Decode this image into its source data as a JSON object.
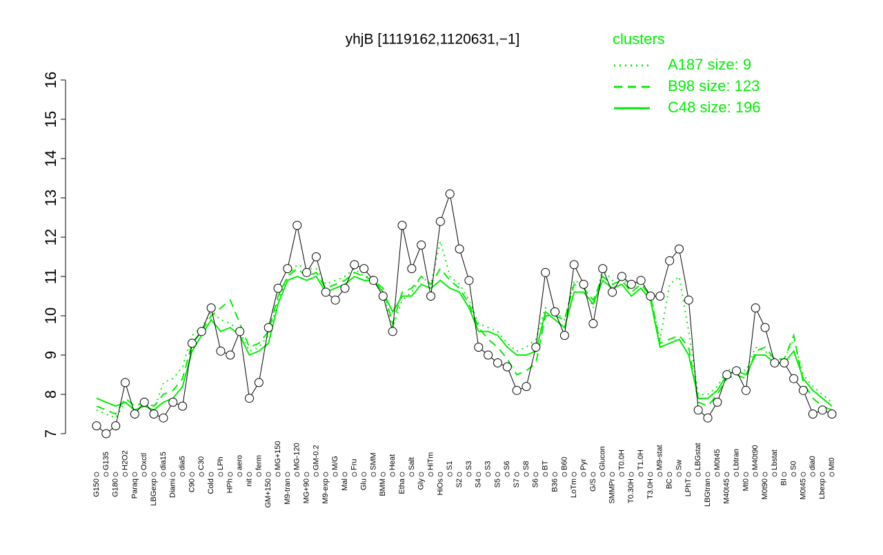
{
  "chart_data": {
    "type": "line",
    "title": "yhjB [1119162,1120631,−1]",
    "legend_title": "clusters",
    "legend_position": "top-right",
    "color": "#000000",
    "categories": [
      "G150",
      "G135",
      "G180",
      "H2O2",
      "Paraq",
      "Oxctl",
      "LBGexp",
      "dia15",
      "Diami",
      "dia5",
      "C90",
      "C30",
      "Cold",
      "LPh",
      "HPh",
      "aero",
      "nit",
      "ferm",
      "GM+150",
      "MG+150",
      "M9-tran",
      "MG-120",
      "MG+90",
      "GM-0.2",
      "M9-exp",
      "M/G",
      "Mal",
      "Fru",
      "Glu",
      "SMM",
      "BMM",
      "Heat",
      "Etha",
      "Salt",
      "Gly",
      "HiTm",
      "HiOs",
      "S1",
      "S2",
      "S3",
      "S4",
      "S3",
      "S5",
      "S6",
      "S7",
      "S8",
      "S6",
      "BT",
      "B36",
      "B60",
      "LoTm",
      "Pyr",
      "G/S",
      "Glucon",
      "SMMPr",
      "T0.0H",
      "T0.30H",
      "T1.0H",
      "T3.0H",
      "M9-stat",
      "BC",
      "Sw",
      "LPhT",
      "LBGstat",
      "LBGtran",
      "M0t45",
      "M40t45",
      "Lbtran",
      "Mt0",
      "M40t90",
      "M0t90",
      "Lbstat",
      "BI",
      "S0",
      "M0t45",
      "dia0",
      "Lbexp",
      "Mt0"
    ],
    "values": [
      7.2,
      7.0,
      7.2,
      8.3,
      7.5,
      7.8,
      7.5,
      7.4,
      7.8,
      7.7,
      9.3,
      9.6,
      10.2,
      9.1,
      9.0,
      9.6,
      7.9,
      8.3,
      9.7,
      10.7,
      11.2,
      12.3,
      11.1,
      11.5,
      10.6,
      10.4,
      10.7,
      11.3,
      11.2,
      10.9,
      10.5,
      9.6,
      12.3,
      11.2,
      11.8,
      10.5,
      12.4,
      13.1,
      11.7,
      10.9,
      9.2,
      9.0,
      8.8,
      8.7,
      8.1,
      8.2,
      9.2,
      11.1,
      10.1,
      9.5,
      11.3,
      10.8,
      9.8,
      11.2,
      10.6,
      11.0,
      10.8,
      10.9,
      10.5,
      10.5,
      11.4,
      11.7,
      10.4,
      7.6,
      7.4,
      7.8,
      8.5,
      8.6,
      8.1,
      10.2,
      9.7,
      8.8,
      8.8,
      8.4,
      8.1,
      7.5,
      7.6,
      7.5
    ],
    "series": [
      {
        "name": "A187 size: 9",
        "color": "#00ee00",
        "style": "dotted",
        "values": [
          7.6,
          7.5,
          7.4,
          7.8,
          7.6,
          7.7,
          7.6,
          8.3,
          8.4,
          8.7,
          9.5,
          9.7,
          10.1,
          9.9,
          9.8,
          9.6,
          9.1,
          9.2,
          9.5,
          10.4,
          11.0,
          11.3,
          11.2,
          11.2,
          10.8,
          10.9,
          11.0,
          11.2,
          11.0,
          11.0,
          10.6,
          9.7,
          10.4,
          10.6,
          11.0,
          10.8,
          11.9,
          11.0,
          10.8,
          10.4,
          9.8,
          9.7,
          9.6,
          9.3,
          9.1,
          9.2,
          9.4,
          10.2,
          10.1,
          9.9,
          10.9,
          10.8,
          10.2,
          11.2,
          10.9,
          11.0,
          10.7,
          10.9,
          10.5,
          9.4,
          10.8,
          11.0,
          9.6,
          8.0,
          8.0,
          8.2,
          8.6,
          8.7,
          8.6,
          9.2,
          9.1,
          8.9,
          8.9,
          9.4,
          8.5,
          8.2,
          8.0,
          7.8
        ]
      },
      {
        "name": "B98 size: 123",
        "color": "#00ee00",
        "style": "dashed",
        "values": [
          7.7,
          7.6,
          7.5,
          7.9,
          7.7,
          7.8,
          7.7,
          8.0,
          8.1,
          8.4,
          9.3,
          9.6,
          10.0,
          10.2,
          10.4,
          9.8,
          9.2,
          9.3,
          9.6,
          10.5,
          11.0,
          11.2,
          11.0,
          11.1,
          10.7,
          10.8,
          10.9,
          11.1,
          11.0,
          10.9,
          10.7,
          9.8,
          10.6,
          10.7,
          11.0,
          10.8,
          11.2,
          10.9,
          10.7,
          10.3,
          9.7,
          9.4,
          9.2,
          8.9,
          8.5,
          8.6,
          8.8,
          10.0,
          10.0,
          9.9,
          10.8,
          10.7,
          10.4,
          11.0,
          10.8,
          10.9,
          10.6,
          10.8,
          10.5,
          9.3,
          9.4,
          9.5,
          9.2,
          7.8,
          7.7,
          8.0,
          8.4,
          8.5,
          8.4,
          9.1,
          9.2,
          8.9,
          8.9,
          9.5,
          8.3,
          7.9,
          7.7,
          7.6
        ]
      },
      {
        "name": "C48 size: 196",
        "color": "#00ee00",
        "style": "solid",
        "values": [
          7.9,
          7.8,
          7.7,
          7.8,
          7.6,
          7.7,
          7.6,
          7.8,
          7.9,
          8.2,
          9.1,
          9.5,
          9.9,
          9.6,
          9.7,
          9.5,
          9.0,
          9.1,
          9.3,
          10.3,
          10.9,
          11.0,
          10.9,
          11.0,
          10.6,
          10.7,
          10.8,
          11.0,
          10.9,
          10.9,
          10.6,
          10.1,
          10.5,
          10.5,
          10.8,
          10.7,
          10.9,
          10.7,
          10.6,
          10.2,
          9.6,
          9.6,
          9.5,
          9.2,
          9.0,
          9.0,
          9.1,
          10.1,
          9.9,
          9.7,
          10.6,
          10.6,
          10.3,
          10.9,
          10.7,
          10.8,
          10.5,
          10.7,
          10.4,
          9.2,
          9.3,
          9.4,
          9.0,
          7.9,
          7.9,
          8.1,
          8.5,
          8.6,
          8.5,
          9.0,
          9.0,
          8.8,
          8.8,
          9.1,
          8.4,
          8.1,
          7.9,
          7.7
        ]
      }
    ],
    "ylim": [
      7,
      16
    ],
    "yticks": [
      7,
      8,
      9,
      10,
      11,
      12,
      13,
      14,
      15,
      16
    ]
  }
}
